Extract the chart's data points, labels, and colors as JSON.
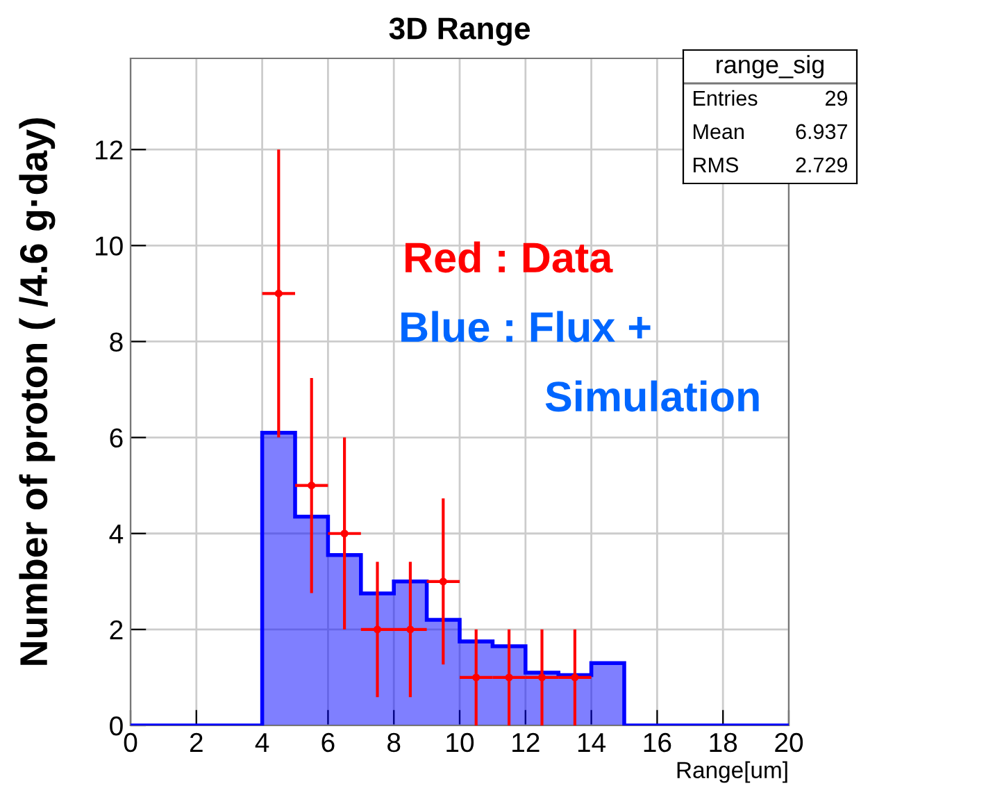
{
  "chart_data": {
    "type": "histogram",
    "title": "3D Range",
    "xlabel": "Range[um]",
    "ylabel": "Number of proton ( /4.6 g·day)",
    "bins": [
      0,
      1,
      2,
      3,
      4,
      5,
      6,
      7,
      8,
      9,
      10,
      11,
      12,
      13,
      14,
      15,
      16,
      17,
      18,
      19,
      20
    ],
    "series": [
      {
        "color": "#0000ff",
        "values": [
          0,
          0,
          0,
          0,
          6.1,
          4.35,
          3.55,
          2.75,
          3.0,
          2.2,
          1.75,
          1.65,
          1.1,
          1.05,
          1.3,
          0,
          0,
          0,
          0,
          0
        ]
      },
      {
        "type": "scatter",
        "color": "#ff0000",
        "x": [
          4.5,
          5.5,
          6.5,
          7.5,
          8.5,
          9.5,
          10.5,
          11.5,
          12.5,
          13.5
        ],
        "values": [
          9,
          5,
          4,
          2,
          2,
          3,
          1,
          1,
          1,
          1
        ],
        "errors": [
          3,
          2.24,
          2,
          1.41,
          1.41,
          1.73,
          1,
          1,
          1,
          1
        ],
        "xerrors": [
          0.5,
          0.5,
          0.5,
          0.5,
          0.5,
          0.5,
          0.5,
          0.5,
          0.5,
          0.5
        ]
      }
    ],
    "xlim": [
      0,
      20
    ],
    "xticks": [
      0,
      2,
      4,
      6,
      8,
      10,
      12,
      14,
      16,
      18,
      20
    ],
    "ylim": [
      0,
      13.9
    ],
    "yticks": [
      0,
      2,
      4,
      6,
      8,
      10,
      12
    ],
    "grid": true,
    "marker": "circle",
    "annotations": [
      "range_sig",
      "Entries 29",
      "Mean 6.937",
      "RMS 2.729",
      "Red : Data",
      "Blue : Flux +",
      "Simulation"
    ]
  }
}
